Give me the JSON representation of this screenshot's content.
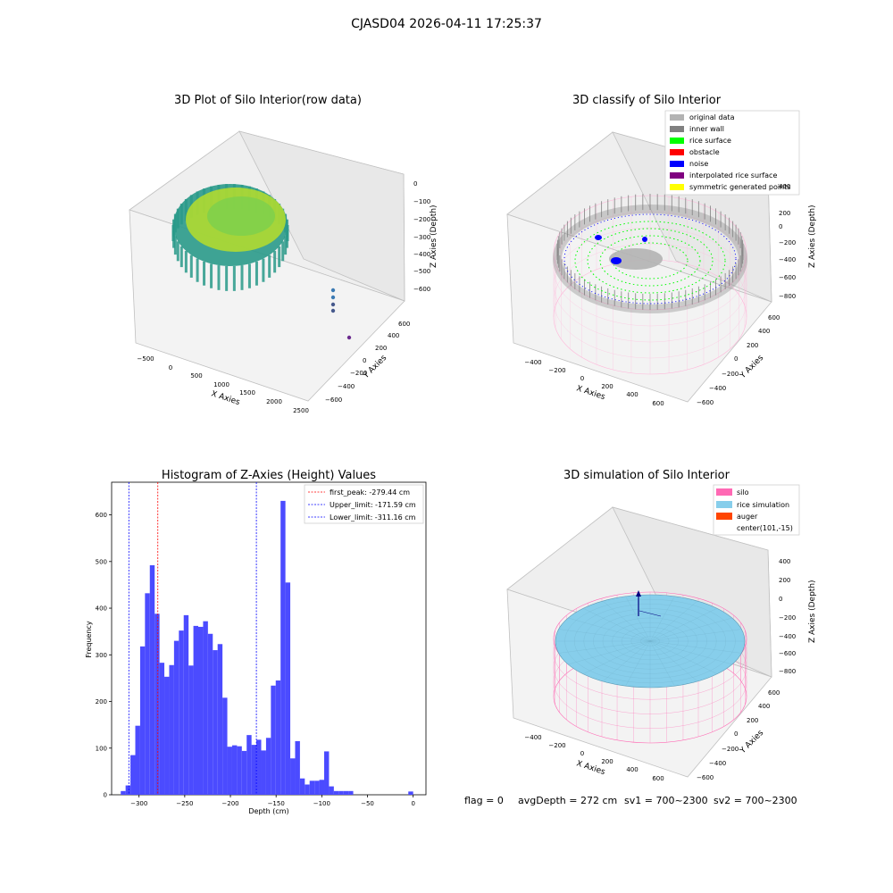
{
  "figure": {
    "suptitle": "CJASD04 2026-04-11 17:25:37",
    "footer": {
      "flag": "flag = 0",
      "avg": "avgDepth = 272 cm",
      "sv1": "sv1 = 700~2300",
      "sv2": "sv2 = 700~2300"
    }
  },
  "colors": {
    "original": "#b3b3b3",
    "inner_wall": "#808080",
    "rice_surface": "#00ff00",
    "obstacle": "#ff0000",
    "noise": "#0000ff",
    "interpolated": "#800080",
    "symmetric": "#ffff00",
    "silo_pink": "#ff69b4",
    "rice_sim": "#87ceeb",
    "auger": "#ff4500",
    "hist_bar": "#4b4bff",
    "viridis_dark": "#2a9a8a",
    "viridis_light": "#b7de2a"
  },
  "chart_data": [
    {
      "type": "scatter3d",
      "title": "3D Plot of Silo Interior(row data)",
      "xlabel": "X Axies",
      "ylabel": "Y Axies",
      "zlabel": "Z Axies (Depth)",
      "x_ticks": [
        "−500",
        "0",
        "500",
        "1000",
        "1500",
        "2000",
        "2500"
      ],
      "y_ticks": [
        "−600",
        "−400",
        "−200",
        "0",
        "200",
        "400",
        "600"
      ],
      "z_ticks": [
        "0",
        "−100",
        "−200",
        "−300",
        "−400",
        "−500",
        "−600"
      ],
      "xlim": [
        -600,
        2500
      ],
      "ylim": [
        -650,
        700
      ],
      "zlim": [
        -660,
        20
      ]
    },
    {
      "type": "scatter3d",
      "title": "3D classify of Silo Interior",
      "xlabel": "X Axies",
      "ylabel": "Y Axies",
      "zlabel": "Z Axies (Depth)",
      "x_ticks": [
        "−400",
        "−200",
        "0",
        "200",
        "400",
        "600"
      ],
      "y_ticks": [
        "−600",
        "−400",
        "−200",
        "0",
        "200",
        "400",
        "600"
      ],
      "z_ticks": [
        "400",
        "200",
        "0",
        "−200",
        "−400",
        "−600",
        "−800"
      ],
      "xlim": [
        -500,
        700
      ],
      "ylim": [
        -650,
        650
      ],
      "zlim": [
        -900,
        500
      ],
      "legend": [
        "original data",
        "inner wall",
        "rice surface",
        "obstacle",
        "noise",
        "interpolated rice surface",
        "symmetric generated points"
      ],
      "legend_position": "top-right"
    },
    {
      "type": "bar",
      "title": "Histogram of Z-Axies (Height) Values",
      "xlabel": "Depth (cm)",
      "ylabel": "Frequency",
      "xlim": [
        -330,
        14
      ],
      "ylim": [
        0,
        670
      ],
      "bin_width": 5.3,
      "x_ticks": [
        -300,
        -250,
        -200,
        -150,
        -100,
        -50,
        0
      ],
      "x_tick_labels": [
        "−300",
        "−250",
        "−200",
        "−150",
        "−100",
        "−50",
        "0"
      ],
      "y_ticks": [
        0,
        100,
        200,
        300,
        400,
        500,
        600
      ],
      "bins": [
        {
          "x": -320.0,
          "v": 8
        },
        {
          "x": -314.7,
          "v": 20
        },
        {
          "x": -309.4,
          "v": 85
        },
        {
          "x": -304.1,
          "v": 148
        },
        {
          "x": -298.8,
          "v": 318
        },
        {
          "x": -293.5,
          "v": 432
        },
        {
          "x": -288.2,
          "v": 492
        },
        {
          "x": -282.9,
          "v": 388
        },
        {
          "x": -277.6,
          "v": 283
        },
        {
          "x": -272.3,
          "v": 253
        },
        {
          "x": -267.0,
          "v": 278
        },
        {
          "x": -261.7,
          "v": 330
        },
        {
          "x": -256.4,
          "v": 352
        },
        {
          "x": -251.1,
          "v": 385
        },
        {
          "x": -245.8,
          "v": 277
        },
        {
          "x": -240.5,
          "v": 362
        },
        {
          "x": -235.2,
          "v": 360
        },
        {
          "x": -229.9,
          "v": 372
        },
        {
          "x": -224.6,
          "v": 345
        },
        {
          "x": -219.3,
          "v": 310
        },
        {
          "x": -214.0,
          "v": 323
        },
        {
          "x": -208.7,
          "v": 208
        },
        {
          "x": -203.4,
          "v": 103
        },
        {
          "x": -198.1,
          "v": 106
        },
        {
          "x": -192.8,
          "v": 104
        },
        {
          "x": -187.5,
          "v": 94
        },
        {
          "x": -182.2,
          "v": 128
        },
        {
          "x": -176.9,
          "v": 107
        },
        {
          "x": -171.6,
          "v": 118
        },
        {
          "x": -166.3,
          "v": 95
        },
        {
          "x": -161.0,
          "v": 122
        },
        {
          "x": -155.7,
          "v": 234
        },
        {
          "x": -150.4,
          "v": 245
        },
        {
          "x": -145.1,
          "v": 630
        },
        {
          "x": -139.8,
          "v": 455
        },
        {
          "x": -134.5,
          "v": 78
        },
        {
          "x": -129.2,
          "v": 115
        },
        {
          "x": -123.9,
          "v": 35
        },
        {
          "x": -118.6,
          "v": 22
        },
        {
          "x": -113.3,
          "v": 30
        },
        {
          "x": -108.0,
          "v": 30
        },
        {
          "x": -102.7,
          "v": 32
        },
        {
          "x": -97.4,
          "v": 93
        },
        {
          "x": -92.1,
          "v": 18
        },
        {
          "x": -86.8,
          "v": 8
        },
        {
          "x": -81.5,
          "v": 8
        },
        {
          "x": -76.2,
          "v": 8
        },
        {
          "x": -70.9,
          "v": 8
        },
        {
          "x": -5.3,
          "v": 7
        }
      ],
      "lines": [
        {
          "label": "first_peak: -279.44 cm",
          "x": -279.44,
          "color": "#ff0000"
        },
        {
          "label": "Upper_limit: -171.59 cm",
          "x": -171.59,
          "color": "#0000ff"
        },
        {
          "label": "Lower_limit: -311.16 cm",
          "x": -311.16,
          "color": "#0000ff"
        }
      ],
      "legend_position": "top-right"
    },
    {
      "type": "surface3d",
      "title": "3D simulation of Silo Interior",
      "xlabel": "X Axies",
      "ylabel": "Y Axies",
      "zlabel": "Z Axies (Depth)",
      "x_ticks": [
        "−400",
        "−200",
        "0",
        "200",
        "400",
        "600"
      ],
      "y_ticks": [
        "−600",
        "−400",
        "−200",
        "0",
        "200",
        "400",
        "600"
      ],
      "z_ticks": [
        "400",
        "200",
        "0",
        "−200",
        "−400",
        "−600",
        "−800"
      ],
      "legend": [
        "silo",
        "rice simulation",
        "auger",
        "center(101,-15)"
      ],
      "legend_position": "top-right"
    }
  ]
}
